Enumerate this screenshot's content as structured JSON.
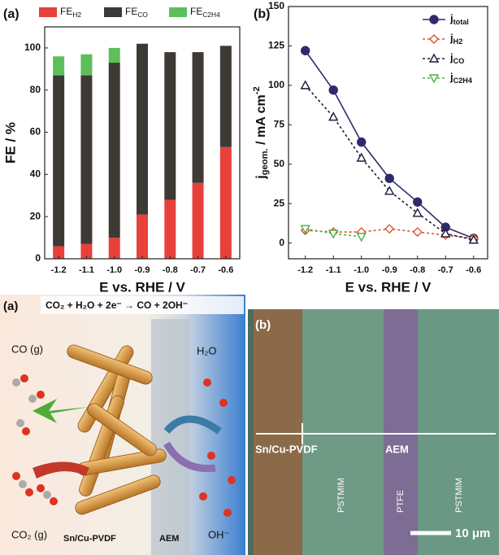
{
  "chart_data": [
    {
      "type": "bar",
      "stacked": true,
      "panel": "(a)",
      "ylabel": "FE / %",
      "xlabel": "E vs. RHE / V",
      "categories": [
        "-1.2",
        "-1.1",
        "-1.0",
        "-0.9",
        "-0.8",
        "-0.7",
        "-0.6"
      ],
      "series": [
        {
          "name": "FE",
          "name_subscript": "H2",
          "color": "#e8403a",
          "values": [
            6,
            7,
            10,
            21,
            28,
            36,
            53
          ]
        },
        {
          "name": "FE",
          "name_subscript": "CO",
          "color": "#3d3935",
          "values": [
            81,
            80,
            83,
            81,
            70,
            62,
            48
          ]
        },
        {
          "name": "FE",
          "name_subscript": "C2H4",
          "color": "#5cbf5a",
          "values": [
            9,
            10,
            7,
            0,
            0,
            0,
            0
          ]
        }
      ],
      "ylim": [
        0,
        110
      ],
      "yticks": [
        0,
        20,
        40,
        60,
        80,
        100
      ]
    },
    {
      "type": "line",
      "panel": "(b)",
      "ylabel": {
        "text": "j",
        "sub": "geom.",
        "rest": " / mA cm",
        "sup": "-2"
      },
      "xlabel": "E vs. RHE / V",
      "x": [
        -1.2,
        -1.1,
        -1.0,
        -0.9,
        -0.8,
        -0.7,
        -0.6
      ],
      "series": [
        {
          "name": "j",
          "name_subscript": "total",
          "color": "#2e2a6b",
          "dash": "none",
          "marker": "circle-filled",
          "values": [
            122,
            97,
            64,
            41,
            26,
            10,
            3
          ]
        },
        {
          "name": "j",
          "name_subscript": "H2",
          "color": "#e0502a",
          "dash": "3 3",
          "marker": "diamond",
          "values": [
            8,
            7,
            7,
            9,
            7,
            5,
            3
          ]
        },
        {
          "name": "j",
          "name_subscript": "CO",
          "color": "#1a1a3a",
          "dash": "3 3",
          "marker": "triangle",
          "values": [
            100,
            80,
            54,
            33,
            19,
            6,
            2
          ]
        },
        {
          "name": "j",
          "name_subscript": "C2H4",
          "color": "#4daf4a",
          "dash": "3 3",
          "marker": "triangle-down",
          "values": [
            9,
            6,
            4,
            null,
            null,
            null,
            null
          ]
        }
      ],
      "xlim": [
        -1.26,
        -0.55
      ],
      "xticks": [
        -1.2,
        -1.1,
        {
          "value": -1.0,
          "label": "-1.0"
        },
        -0.9,
        -0.8,
        -0.7,
        -0.6
      ],
      "ylim": [
        -10,
        150
      ],
      "yticks": [
        0,
        25,
        50,
        75,
        100,
        125,
        150
      ],
      "legend": "top-right"
    }
  ],
  "schematic": {
    "panel": "(a)",
    "reaction": "CO₂ + H₂O + 2e⁻ → CO + 2OH⁻",
    "product": "CO (g)",
    "water": "H₂O",
    "reactant": "CO₂ (g)",
    "electrode": "Sn/Cu-PVDF",
    "membrane": "AEM",
    "anion": "OH⁻"
  },
  "micrograph": {
    "panel": "(b)",
    "electrode": "Sn/Cu-PVDF",
    "membrane": "AEM",
    "layers": [
      "PSTMIM",
      "PTFE",
      "PSTMIM"
    ],
    "scale_bar": "10 μm"
  }
}
